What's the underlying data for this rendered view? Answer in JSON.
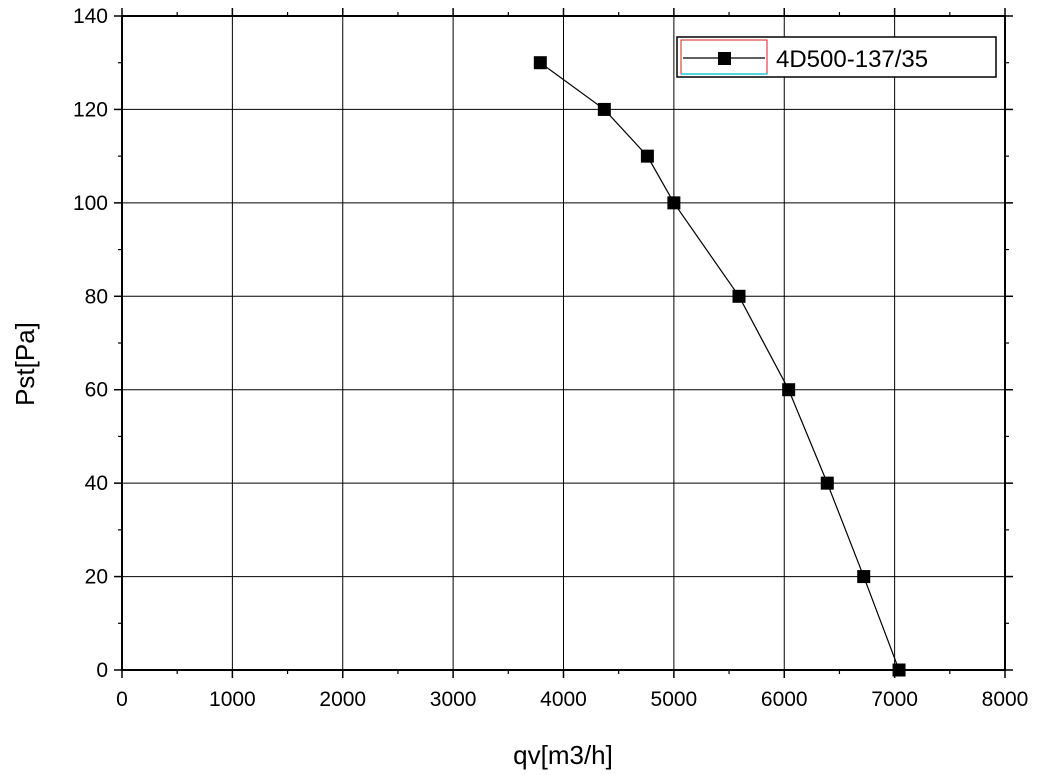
{
  "chart_data": {
    "type": "line",
    "title": "",
    "xlabel": "qv[m3/h]",
    "ylabel": "Pst[Pa]",
    "xlim": [
      0,
      8000
    ],
    "ylim": [
      0,
      140
    ],
    "xticks": [
      0,
      1000,
      2000,
      3000,
      4000,
      5000,
      6000,
      7000,
      8000
    ],
    "yticks": [
      0,
      20,
      40,
      60,
      80,
      100,
      120,
      140
    ],
    "xtick_labels": [
      "0",
      "1000",
      "2000",
      "3000",
      "4000",
      "5000",
      "6000",
      "7000",
      "8000"
    ],
    "ytick_labels": [
      "0",
      "20",
      "40",
      "60",
      "80",
      "100",
      "120",
      "140"
    ],
    "grid": true,
    "legend": {
      "position": "top-right",
      "entries": [
        "4D500-137/35"
      ]
    },
    "series": [
      {
        "name": "4D500-137/35",
        "marker": "square",
        "color": "#000000",
        "x": [
          3790,
          4370,
          4760,
          5000,
          5590,
          6040,
          6390,
          6720,
          7040
        ],
        "y": [
          130,
          120,
          110,
          100,
          80,
          60,
          40,
          20,
          0
        ]
      }
    ]
  },
  "colors": {
    "axis": "#000000",
    "grid": "#000000",
    "series": "#000000",
    "legend_frame_accent": "#d62020",
    "legend_frame_accent2": "#20c8d6"
  }
}
